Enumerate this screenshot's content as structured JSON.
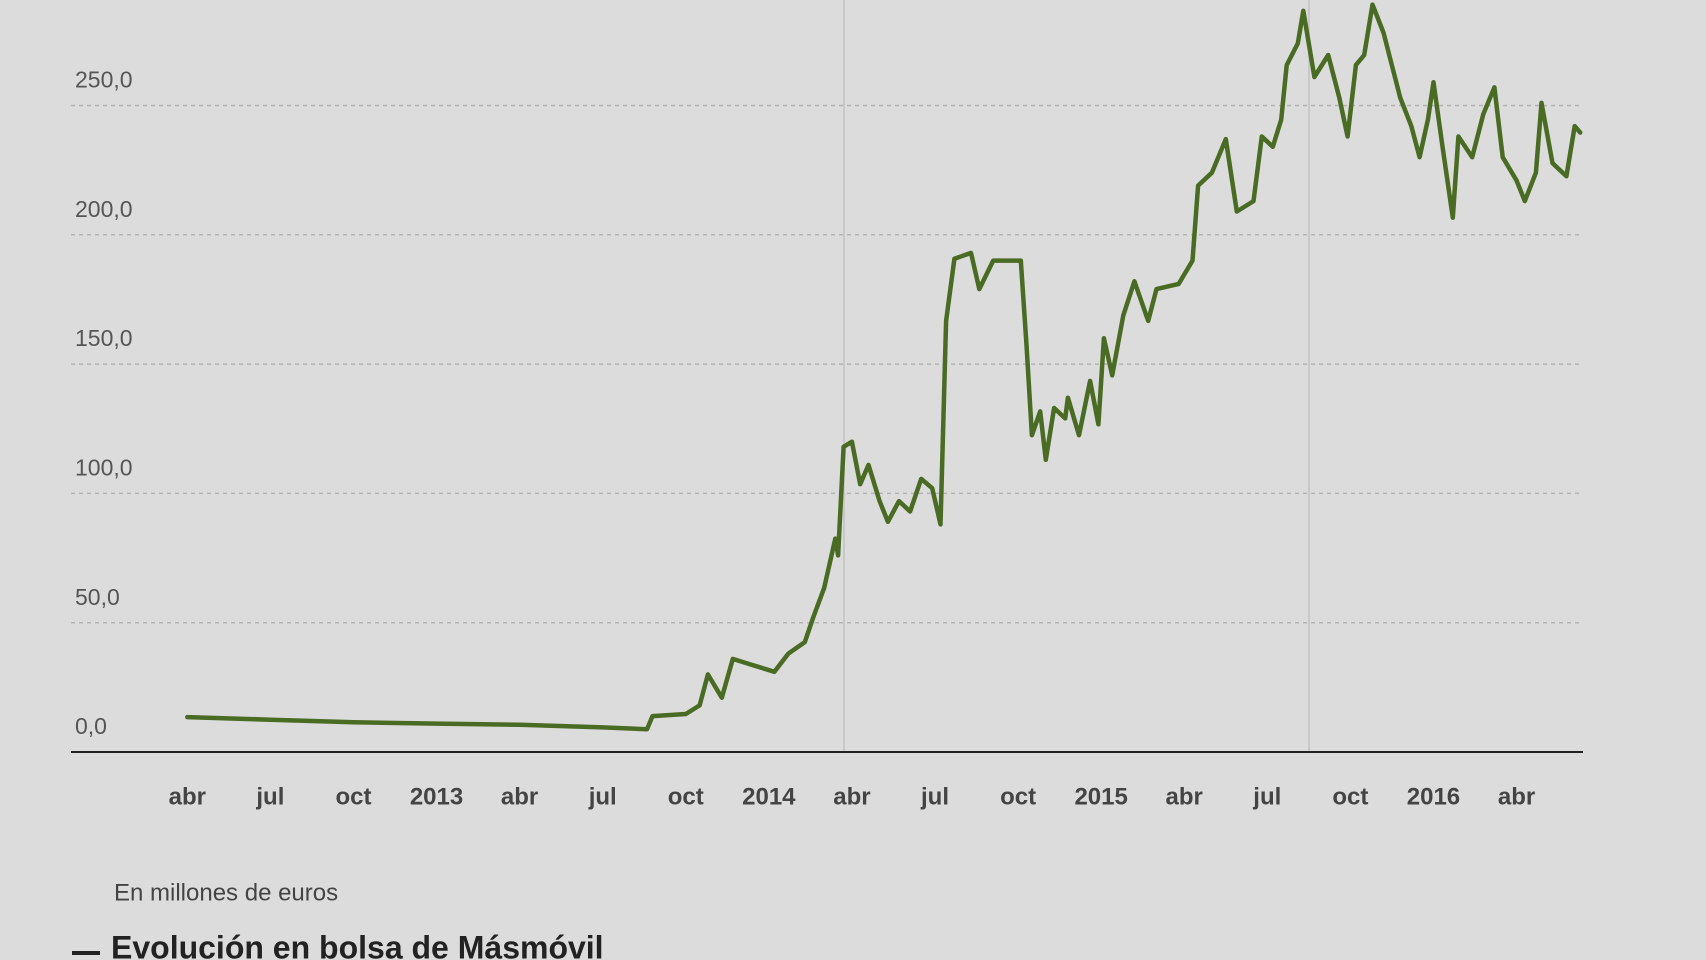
{
  "chart_data": {
    "type": "line",
    "title": "Evolución en bolsa de Másmóvil",
    "subtitle": "En millones de euros",
    "xlim": [
      -4.2,
      50.4
    ],
    "xticks": [
      {
        "value": 0,
        "label": "abr"
      },
      {
        "value": 3,
        "label": "jul"
      },
      {
        "value": 6,
        "label": "oct"
      },
      {
        "value": 9,
        "label": "2013"
      },
      {
        "value": 12,
        "label": "abr"
      },
      {
        "value": 15,
        "label": "jul"
      },
      {
        "value": 18,
        "label": "oct"
      },
      {
        "value": 21,
        "label": "2014"
      },
      {
        "value": 24,
        "label": "abr"
      },
      {
        "value": 27,
        "label": "jul"
      },
      {
        "value": 30,
        "label": "oct"
      },
      {
        "value": 33,
        "label": "2015"
      },
      {
        "value": 36,
        "label": "abr"
      },
      {
        "value": 39,
        "label": "jul"
      },
      {
        "value": 42,
        "label": "oct"
      },
      {
        "value": 45,
        "label": "2016"
      },
      {
        "value": 48,
        "label": "abr"
      }
    ],
    "ylim": [
      0,
      290
    ],
    "yticks": [
      {
        "value": 0,
        "label": "0,0"
      },
      {
        "value": 50,
        "label": "50,0"
      },
      {
        "value": 100,
        "label": "100,0"
      },
      {
        "value": 150,
        "label": "150,0"
      },
      {
        "value": 200,
        "label": "200,0"
      },
      {
        "value": 250,
        "label": "250,0"
      }
    ],
    "grid": true,
    "series": [
      {
        "color": "#4a6b23",
        "x": [
          0,
          3,
          6,
          9,
          12,
          15,
          16.6,
          16.8,
          18.0,
          18.5,
          18.8,
          19.3,
          19.7,
          20.3,
          21.2,
          21.7,
          22.3,
          22.6,
          23.0,
          23.4,
          23.5,
          23.7,
          24.0,
          24.3,
          24.6,
          25.0,
          25.3,
          25.7,
          26.1,
          26.5,
          26.9,
          27.2,
          27.4,
          27.7,
          28.3,
          28.6,
          29.1,
          30.1,
          30.3,
          30.5,
          30.8,
          31.0,
          31.3,
          31.7,
          31.8,
          32.2,
          32.6,
          32.9,
          33.1,
          33.4,
          33.8,
          34.2,
          34.7,
          35.0,
          35.8,
          36.3,
          36.5,
          37.0,
          37.5,
          37.9,
          38.5,
          38.8,
          39.2,
          39.5,
          39.7,
          40.1,
          40.3,
          40.7,
          41.2,
          41.6,
          41.9,
          42.2,
          42.5,
          42.8,
          43.2,
          43.8,
          44.2,
          44.5,
          44.8,
          45.0,
          45.3,
          45.7,
          45.9,
          46.4,
          46.8,
          47.2,
          47.5,
          48.0,
          48.3,
          48.7,
          48.9,
          49.3,
          49.8,
          50.1,
          50.3
        ],
        "values": [
          13.5,
          12.5,
          11.5,
          11,
          10.5,
          9.5,
          8.8,
          13.9,
          14.7,
          18,
          30,
          21,
          36,
          34,
          31,
          38,
          42.5,
          52,
          63.5,
          82.5,
          76,
          118,
          120,
          103.5,
          111,
          97,
          89,
          97,
          93,
          105.6,
          102,
          88,
          166.7,
          190.7,
          193,
          179,
          190,
          190,
          158,
          122.5,
          131.7,
          113,
          133,
          129,
          137,
          122.5,
          143.5,
          126.7,
          160,
          145.6,
          168.8,
          182,
          166.7,
          179,
          181,
          190,
          219,
          224,
          237,
          209,
          213,
          238,
          234,
          244.5,
          265.6,
          274,
          286.6,
          261,
          269.5,
          253,
          238,
          265.6,
          269.5,
          289,
          278,
          253,
          242,
          230,
          244.5,
          259,
          236,
          206.6,
          238,
          230,
          246.6,
          257,
          230,
          221,
          213,
          224,
          251,
          227.7,
          222.6,
          242,
          239.5
        ]
      }
    ]
  }
}
